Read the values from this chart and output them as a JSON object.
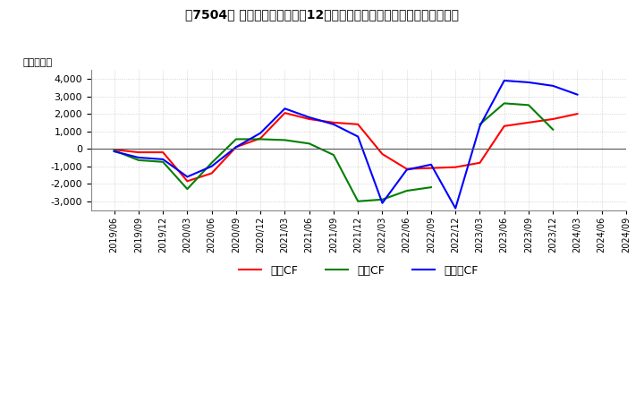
{
  "title": "【7504】 キャッシュフローの12か月移動合計の対前年同期増減額の推移",
  "ylabel": "（百万円）",
  "ylim": [
    -3500,
    4500
  ],
  "yticks": [
    -3000,
    -2000,
    -1000,
    0,
    1000,
    2000,
    3000,
    4000
  ],
  "x_labels": [
    "2019/06",
    "2019/09",
    "2019/12",
    "2020/03",
    "2020/06",
    "2020/09",
    "2020/12",
    "2021/03",
    "2021/06",
    "2021/09",
    "2021/12",
    "2022/03",
    "2022/06",
    "2022/09",
    "2022/12",
    "2023/03",
    "2023/06",
    "2023/09",
    "2023/12",
    "2024/03",
    "2024/06",
    "2024/09"
  ],
  "operating_cf": [
    -50,
    -200,
    -200,
    -1850,
    -1400,
    100,
    600,
    2050,
    1700,
    1500,
    1400,
    -300,
    -1150,
    -1100,
    -1050,
    -800,
    1300,
    1500,
    1700,
    2000,
    null,
    null
  ],
  "investing_cf": [
    -100,
    -650,
    -750,
    -2300,
    -800,
    550,
    550,
    500,
    300,
    -350,
    -3000,
    -2900,
    -2400,
    -2200,
    null,
    1400,
    2600,
    2500,
    1100,
    null,
    null,
    null
  ],
  "free_cf": [
    -150,
    -500,
    -600,
    -1600,
    -1000,
    100,
    900,
    2300,
    1800,
    1400,
    700,
    -3100,
    -1200,
    -900,
    -3400,
    1300,
    3900,
    3800,
    3600,
    3100,
    null,
    null
  ],
  "operating_color": "#ff0000",
  "investing_color": "#008000",
  "free_cf_color": "#0000ff",
  "background_color": "#ffffff",
  "grid_color": "#aaaaaa",
  "legend_labels": [
    "営業CF",
    "投資CF",
    "フリーCF"
  ]
}
